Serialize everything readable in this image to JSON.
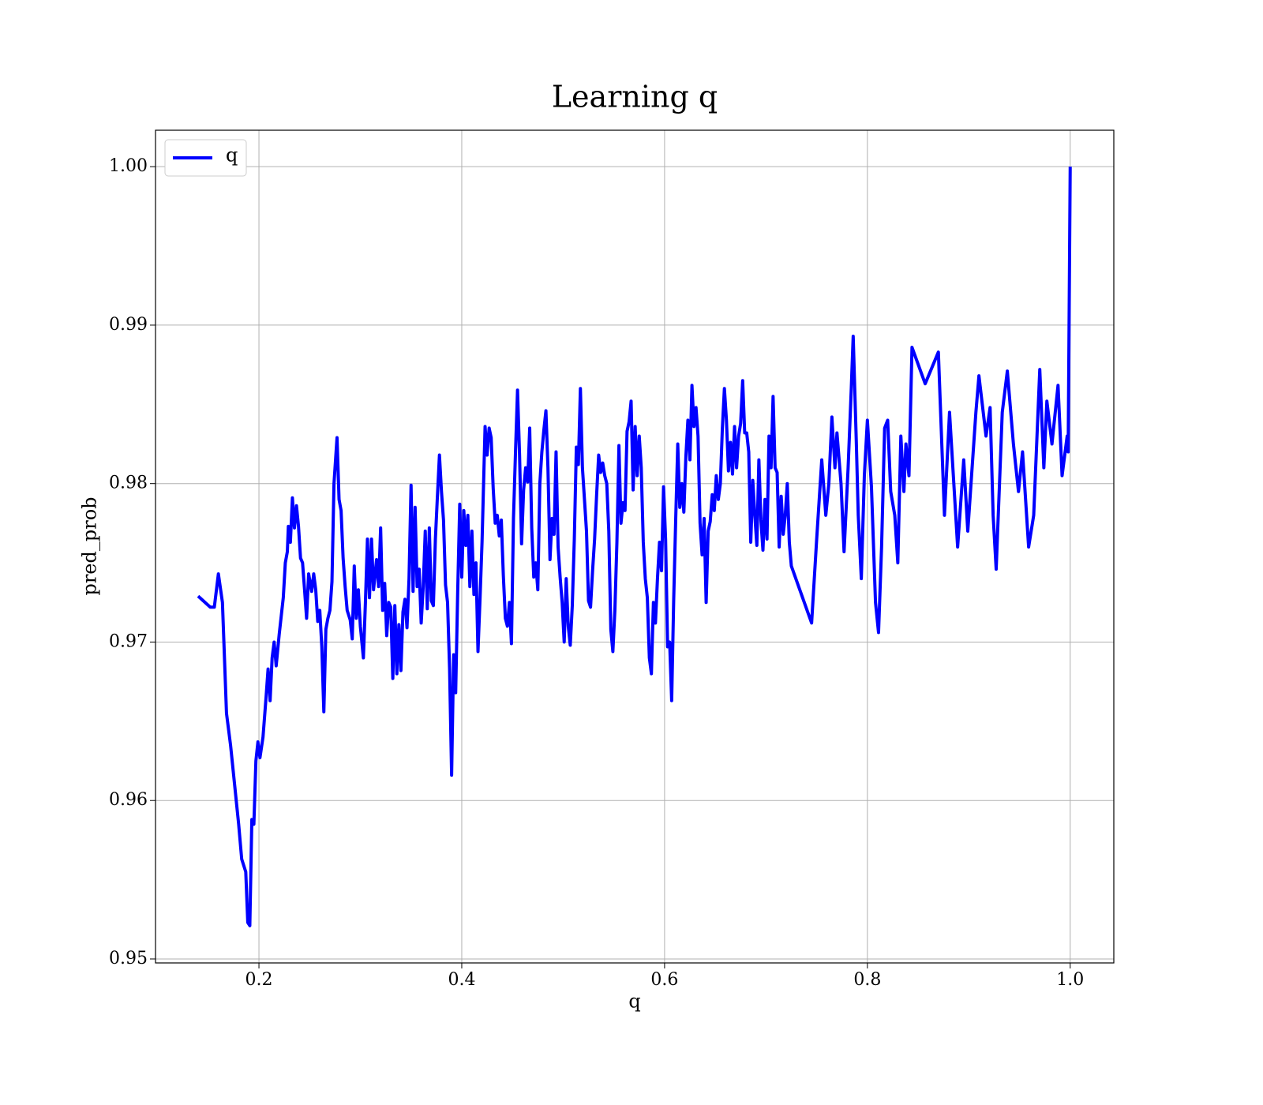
{
  "chart_data": {
    "type": "line",
    "title": "Learning q",
    "xlabel": "q",
    "ylabel": "pred_prob",
    "xlim": [
      0.098,
      1.043
    ],
    "ylim": [
      0.94975,
      1.0023
    ],
    "xticks": [
      0.2,
      0.4,
      0.6,
      0.8,
      {
        "value": 1,
        "label": "1.0"
      }
    ],
    "yticks": [
      0.95,
      0.96,
      0.97,
      0.98,
      0.99,
      {
        "value": 1,
        "label": "1.00"
      }
    ],
    "grid": true,
    "legend": "upper left",
    "x": [
      0.14,
      0.152,
      0.156,
      0.16,
      0.164,
      0.168,
      0.172,
      0.176,
      0.18,
      0.183,
      0.187,
      0.189,
      0.191,
      0.193,
      0.195,
      0.197,
      0.199,
      0.201,
      0.204,
      0.207,
      0.209,
      0.211,
      0.213,
      0.215,
      0.217,
      0.22,
      0.224,
      0.226,
      0.228,
      0.229,
      0.231,
      0.233,
      0.235,
      0.237,
      0.239,
      0.241,
      0.243,
      0.245,
      0.247,
      0.249,
      0.252,
      0.254,
      0.256,
      0.258,
      0.26,
      0.262,
      0.264,
      0.266,
      0.268,
      0.27,
      0.272,
      0.274,
      0.277,
      0.279,
      0.281,
      0.283,
      0.285,
      0.287,
      0.29,
      0.292,
      0.294,
      0.296,
      0.298,
      0.3,
      0.303,
      0.305,
      0.307,
      0.309,
      0.311,
      0.313,
      0.316,
      0.318,
      0.32,
      0.322,
      0.324,
      0.326,
      0.328,
      0.33,
      0.332,
      0.334,
      0.336,
      0.338,
      0.34,
      0.342,
      0.344,
      0.346,
      0.348,
      0.35,
      0.352,
      0.354,
      0.356,
      0.358,
      0.36,
      0.362,
      0.364,
      0.366,
      0.368,
      0.37,
      0.372,
      0.374,
      0.376,
      0.378,
      0.38,
      0.382,
      0.384,
      0.386,
      0.388,
      0.39,
      0.392,
      0.394,
      0.396,
      0.398,
      0.4,
      0.402,
      0.404,
      0.406,
      0.408,
      0.41,
      0.412,
      0.414,
      0.416,
      0.418,
      0.42,
      0.423,
      0.425,
      0.427,
      0.429,
      0.431,
      0.433,
      0.435,
      0.437,
      0.439,
      0.441,
      0.443,
      0.445,
      0.447,
      0.449,
      0.451,
      0.453,
      0.455,
      0.457,
      0.459,
      0.461,
      0.463,
      0.465,
      0.467,
      0.469,
      0.471,
      0.473,
      0.475,
      0.477,
      0.479,
      0.481,
      0.483,
      0.485,
      0.487,
      0.489,
      0.491,
      0.493,
      0.495,
      0.497,
      0.499,
      0.501,
      0.503,
      0.505,
      0.507,
      0.509,
      0.511,
      0.513,
      0.515,
      0.517,
      0.519,
      0.521,
      0.523,
      0.525,
      0.527,
      0.529,
      0.531,
      0.533,
      0.535,
      0.537,
      0.539,
      0.541,
      0.543,
      0.545,
      0.547,
      0.549,
      0.551,
      0.553,
      0.555,
      0.557,
      0.559,
      0.561,
      0.563,
      0.565,
      0.567,
      0.569,
      0.571,
      0.573,
      0.575,
      0.577,
      0.579,
      0.581,
      0.583,
      0.585,
      0.587,
      0.589,
      0.591,
      0.593,
      0.595,
      0.597,
      0.599,
      0.601,
      0.603,
      0.605,
      0.607,
      0.609,
      0.611,
      0.613,
      0.615,
      0.617,
      0.619,
      0.621,
      0.623,
      0.625,
      0.627,
      0.629,
      0.631,
      0.633,
      0.635,
      0.637,
      0.639,
      0.641,
      0.643,
      0.645,
      0.647,
      0.649,
      0.651,
      0.653,
      0.655,
      0.657,
      0.659,
      0.661,
      0.663,
      0.665,
      0.667,
      0.669,
      0.671,
      0.673,
      0.675,
      0.677,
      0.679,
      0.681,
      0.683,
      0.685,
      0.687,
      0.689,
      0.691,
      0.693,
      0.695,
      0.697,
      0.699,
      0.701,
      0.703,
      0.705,
      0.707,
      0.709,
      0.711,
      0.713,
      0.715,
      0.717,
      0.719,
      0.721,
      0.723,
      0.725,
      0.745,
      0.75,
      0.755,
      0.759,
      0.762,
      0.765,
      0.768,
      0.77,
      0.774,
      0.777,
      0.781,
      0.784,
      0.786,
      0.789,
      0.791,
      0.794,
      0.797,
      0.8,
      0.804,
      0.808,
      0.811,
      0.814,
      0.817,
      0.82,
      0.823,
      0.827,
      0.83,
      0.833,
      0.836,
      0.838,
      0.841,
      0.844,
      0.857,
      0.87,
      0.876,
      0.881,
      0.889,
      0.895,
      0.899,
      0.907,
      0.91,
      0.917,
      0.921,
      0.924,
      0.927,
      0.933,
      0.938,
      0.944,
      0.949,
      0.953,
      0.959,
      0.964,
      0.97,
      0.974,
      0.977,
      0.982,
      0.988,
      0.992,
      0.997,
      0.998,
      1.0
    ],
    "series": [
      {
        "name": "q",
        "color": "#0000ff",
        "values": [
          0.9729,
          0.9722,
          0.9722,
          0.9743,
          0.9725,
          0.9655,
          0.9635,
          0.961,
          0.9585,
          0.9563,
          0.9555,
          0.9523,
          0.9521,
          0.9588,
          0.9585,
          0.9625,
          0.9637,
          0.9627,
          0.964,
          0.9665,
          0.9683,
          0.9663,
          0.969,
          0.97,
          0.9685,
          0.9705,
          0.9728,
          0.975,
          0.9757,
          0.9773,
          0.9763,
          0.9791,
          0.9772,
          0.9786,
          0.9773,
          0.9753,
          0.975,
          0.9733,
          0.9715,
          0.9743,
          0.9732,
          0.9743,
          0.9733,
          0.9713,
          0.972,
          0.9697,
          0.9656,
          0.9708,
          0.9715,
          0.972,
          0.9738,
          0.98,
          0.9829,
          0.979,
          0.9783,
          0.9753,
          0.9735,
          0.972,
          0.9714,
          0.9702,
          0.9748,
          0.9715,
          0.9733,
          0.971,
          0.969,
          0.9725,
          0.9765,
          0.9728,
          0.9765,
          0.9733,
          0.9752,
          0.9735,
          0.9772,
          0.972,
          0.9737,
          0.9704,
          0.9725,
          0.9722,
          0.9677,
          0.9723,
          0.968,
          0.9711,
          0.9682,
          0.9719,
          0.9727,
          0.9709,
          0.974,
          0.9799,
          0.9732,
          0.9785,
          0.9735,
          0.9746,
          0.9712,
          0.9735,
          0.977,
          0.9721,
          0.9772,
          0.9726,
          0.9723,
          0.9765,
          0.9792,
          0.9818,
          0.9795,
          0.9777,
          0.9736,
          0.9725,
          0.9683,
          0.9616,
          0.9692,
          0.9668,
          0.9732,
          0.9787,
          0.9741,
          0.9783,
          0.9761,
          0.978,
          0.9735,
          0.977,
          0.973,
          0.975,
          0.9694,
          0.9727,
          0.9763,
          0.9836,
          0.9818,
          0.9835,
          0.9829,
          0.9797,
          0.9775,
          0.978,
          0.9767,
          0.9777,
          0.9742,
          0.9715,
          0.971,
          0.9725,
          0.9699,
          0.9778,
          0.982,
          0.9859,
          0.9818,
          0.9762,
          0.9796,
          0.981,
          0.9801,
          0.9835,
          0.9772,
          0.9741,
          0.975,
          0.9733,
          0.98,
          0.982,
          0.9834,
          0.9846,
          0.981,
          0.9752,
          0.9778,
          0.9768,
          0.982,
          0.976,
          0.9741,
          0.9725,
          0.97,
          0.974,
          0.971,
          0.9698,
          0.9723,
          0.9765,
          0.9823,
          0.9812,
          0.986,
          0.981,
          0.979,
          0.977,
          0.9726,
          0.9722,
          0.9745,
          0.9765,
          0.9793,
          0.9818,
          0.9807,
          0.9813,
          0.9805,
          0.98,
          0.977,
          0.9708,
          0.9694,
          0.972,
          0.9763,
          0.9824,
          0.9775,
          0.9788,
          0.9783,
          0.9833,
          0.9839,
          0.9852,
          0.9796,
          0.9836,
          0.9805,
          0.983,
          0.981,
          0.9763,
          0.974,
          0.9728,
          0.969,
          0.968,
          0.9725,
          0.9712,
          0.974,
          0.9763,
          0.9745,
          0.9798,
          0.9765,
          0.9697,
          0.97,
          0.9663,
          0.9727,
          0.9778,
          0.9825,
          0.9785,
          0.98,
          0.9782,
          0.9817,
          0.984,
          0.9815,
          0.9862,
          0.9836,
          0.9848,
          0.983,
          0.9775,
          0.9755,
          0.9778,
          0.9725,
          0.977,
          0.9776,
          0.9793,
          0.9783,
          0.9805,
          0.979,
          0.98,
          0.9835,
          0.986,
          0.984,
          0.9808,
          0.9826,
          0.9806,
          0.9836,
          0.981,
          0.983,
          0.9838,
          0.9865,
          0.9832,
          0.9832,
          0.982,
          0.9763,
          0.9802,
          0.978,
          0.9761,
          0.9815,
          0.9777,
          0.9758,
          0.979,
          0.9765,
          0.983,
          0.981,
          0.9855,
          0.981,
          0.9807,
          0.976,
          0.9792,
          0.9768,
          0.978,
          0.98,
          0.9763,
          0.9748,
          0.9712,
          0.9765,
          0.9815,
          0.978,
          0.98,
          0.9842,
          0.981,
          0.9832,
          0.98,
          0.9757,
          0.981,
          0.9858,
          0.9893,
          0.9828,
          0.978,
          0.974,
          0.9805,
          0.984,
          0.9798,
          0.9725,
          0.9706,
          0.976,
          0.9835,
          0.984,
          0.9795,
          0.978,
          0.975,
          0.983,
          0.9795,
          0.9825,
          0.9805,
          0.9886,
          0.9863,
          0.9883,
          0.978,
          0.9845,
          0.976,
          0.9815,
          0.977,
          0.9845,
          0.9868,
          0.983,
          0.9848,
          0.978,
          0.9746,
          0.9845,
          0.9871,
          0.9825,
          0.9795,
          0.982,
          0.976,
          0.978,
          0.9872,
          0.981,
          0.9852,
          0.9825,
          0.9862,
          0.9805,
          0.983,
          0.982,
          1.0
        ]
      }
    ]
  }
}
